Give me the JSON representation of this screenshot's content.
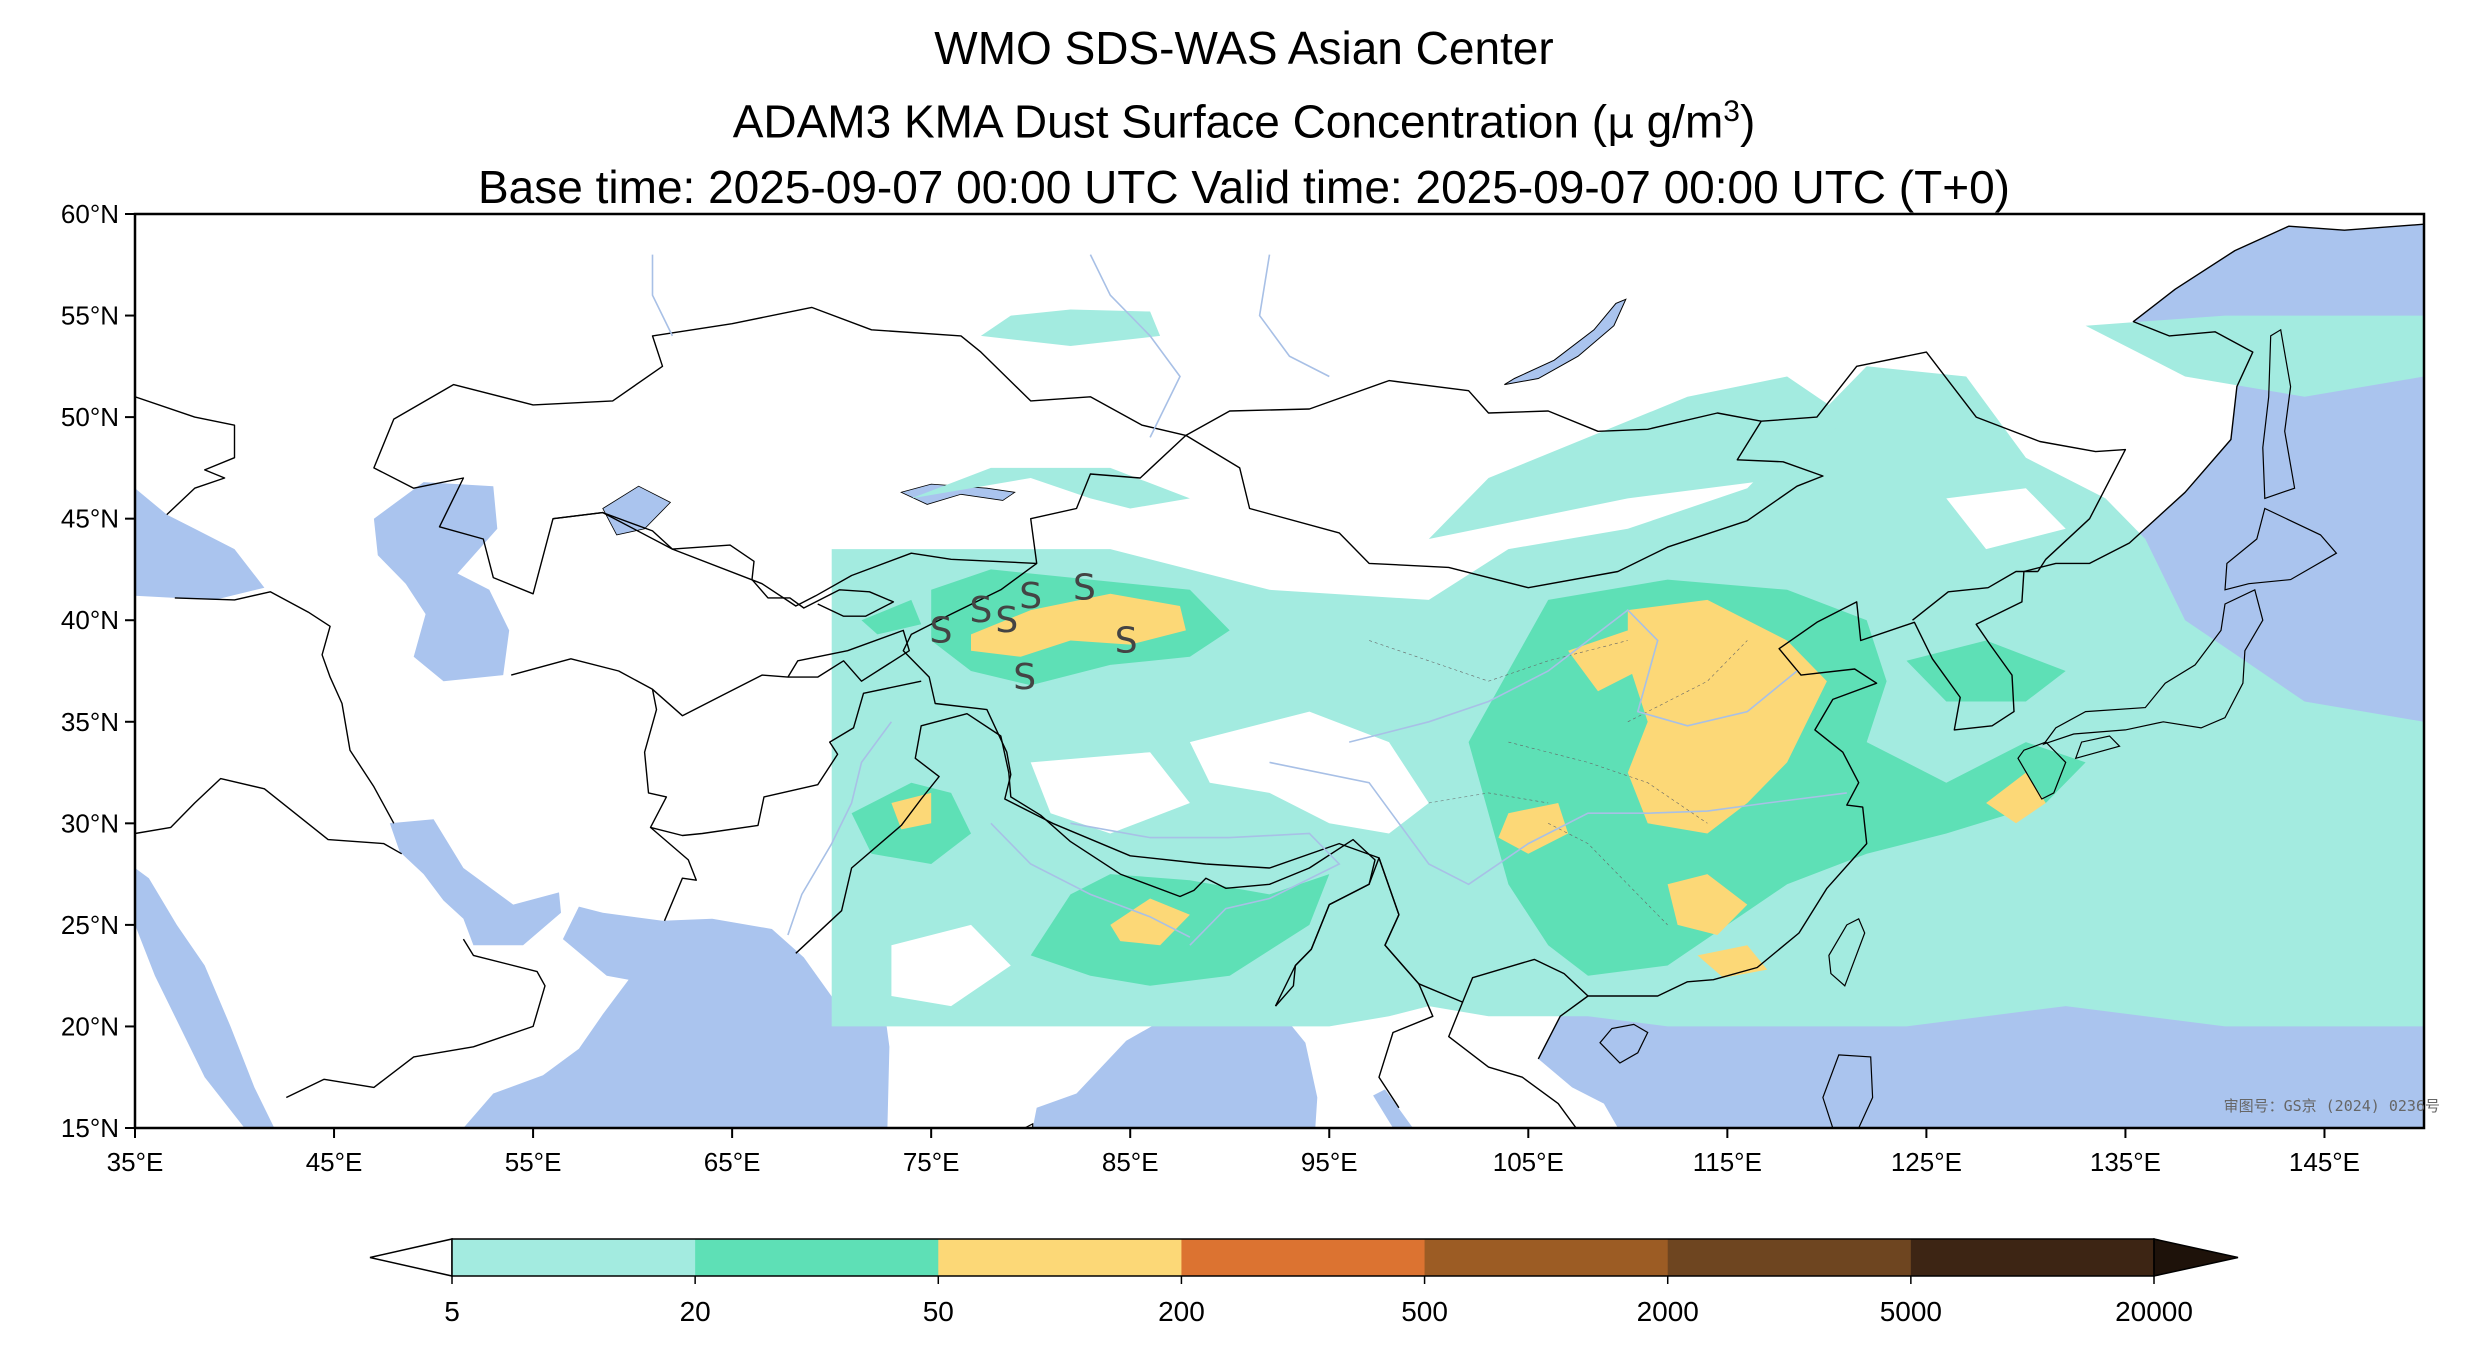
{
  "header": {
    "title": "WMO SDS-WAS Asian Center",
    "subtitle_main": "ADAM3 KMA Dust Surface Concentration (",
    "subtitle_mu": "μ",
    "subtitle_unit": " g/m",
    "subtitle_sup": "3",
    "subtitle_close": ")",
    "time_line": "Base time: 2025-09-07 00:00 UTC Valid time: 2025-09-07 00:00 UTC (T+0)"
  },
  "map": {
    "approval_text": "审图号：GS京 (2024) 0236号",
    "lon_range": [
      35,
      150
    ],
    "lat_range": [
      15,
      60
    ],
    "lon_ticks": [
      "35°E",
      "45°E",
      "55°E",
      "65°E",
      "75°E",
      "85°E",
      "95°E",
      "105°E",
      "115°E",
      "125°E",
      "135°E",
      "145°E"
    ],
    "lat_ticks": [
      "60°N",
      "55°N",
      "50°N",
      "45°N",
      "40°N",
      "35°N",
      "30°N",
      "25°N",
      "20°N",
      "15°N"
    ],
    "model_domain": {
      "lon": [
        70,
        150
      ],
      "lat": [
        20,
        55
      ]
    },
    "dust_storm_symbol": "S",
    "dust_storm_locations": [
      {
        "lon": 75.5,
        "lat": 39.5
      },
      {
        "lon": 77.5,
        "lat": 40.5
      },
      {
        "lon": 78.8,
        "lat": 40.0
      },
      {
        "lon": 80.0,
        "lat": 41.2
      },
      {
        "lon": 82.7,
        "lat": 41.6
      },
      {
        "lon": 79.7,
        "lat": 37.2
      },
      {
        "lon": 84.8,
        "lat": 39.0
      }
    ],
    "colors": {
      "water": "#aac4ee",
      "land": "#ffffff",
      "border": "#000000",
      "river": "#a8c0e6"
    }
  },
  "colorbar": {
    "labels": [
      "5",
      "20",
      "50",
      "200",
      "500",
      "2000",
      "5000",
      "20000"
    ],
    "low_color": "#ffffff",
    "high_color": "#1e120a",
    "colors": [
      "#a3ebe0",
      "#5ee0b6",
      "#fcd877",
      "#dc7331",
      "#9c5c24",
      "#6e4520",
      "#3d2514"
    ]
  }
}
